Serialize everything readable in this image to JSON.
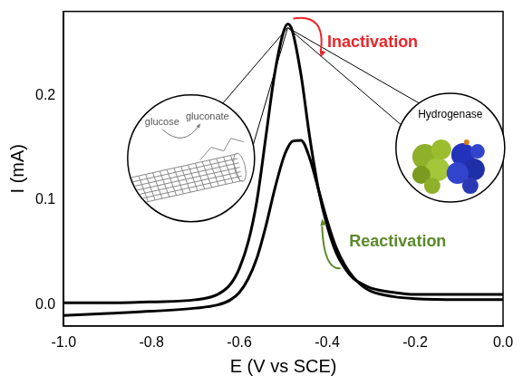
{
  "chart_data": {
    "type": "line",
    "x_label": "E (V vs SCE)",
    "y_label": "I (mA)",
    "x": [
      -1.0,
      -0.9,
      -0.8,
      -0.7,
      -0.65,
      -0.62,
      -0.6,
      -0.58,
      -0.56,
      -0.54,
      -0.52,
      -0.5,
      -0.49,
      -0.48,
      -0.46,
      -0.44,
      -0.42,
      -0.4,
      -0.38,
      -0.36,
      -0.34,
      -0.32,
      -0.3,
      -0.25,
      -0.2,
      -0.1,
      0.0
    ],
    "series": [
      {
        "color": "#000000",
        "values": [
          0.002,
          0.002,
          0.003,
          0.005,
          0.01,
          0.02,
          0.035,
          0.06,
          0.1,
          0.16,
          0.22,
          0.26,
          0.268,
          0.262,
          0.22,
          0.16,
          0.11,
          0.075,
          0.05,
          0.035,
          0.025,
          0.02,
          0.016,
          0.012,
          0.01,
          0.01,
          0.01
        ]
      },
      {
        "color": "#000000",
        "values": [
          -0.01,
          -0.008,
          -0.006,
          -0.003,
          0.0,
          0.005,
          0.012,
          0.025,
          0.045,
          0.075,
          0.11,
          0.14,
          0.15,
          0.156,
          0.157,
          0.14,
          0.11,
          0.08,
          0.055,
          0.038,
          0.026,
          0.018,
          0.013,
          0.008,
          0.006,
          0.005,
          0.005
        ]
      }
    ],
    "xlim": [
      -1.0,
      0.0
    ],
    "xticks": [
      {
        "value": -1.0,
        "label": "-1.0"
      },
      -0.8,
      -0.6,
      -0.4,
      -0.2,
      {
        "value": 0.0,
        "label": "0.0"
      }
    ],
    "ylim": [
      -0.02,
      0.28
    ],
    "yticks": [
      {
        "value": 0.0,
        "label": "0.0"
      },
      0.1,
      0.2
    ],
    "grid": false,
    "annotations": [
      "Inactivation",
      "Reactivation",
      "glucose",
      "gluconate",
      "Hydrogenase"
    ]
  }
}
